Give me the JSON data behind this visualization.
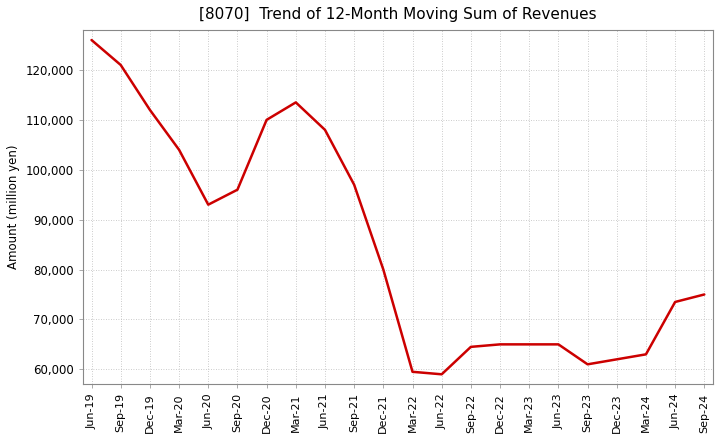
{
  "title": "[8070]  Trend of 12-Month Moving Sum of Revenues",
  "ylabel": "Amount (million yen)",
  "line_color": "#CC0000",
  "background_color": "#FFFFFF",
  "grid_color": "#BBBBBB",
  "ylim": [
    57000,
    128000
  ],
  "yticks": [
    60000,
    70000,
    80000,
    90000,
    100000,
    110000,
    120000
  ],
  "x_labels": [
    "Jun-19",
    "Sep-19",
    "Dec-19",
    "Mar-20",
    "Jun-20",
    "Sep-20",
    "Dec-20",
    "Mar-21",
    "Jun-21",
    "Sep-21",
    "Dec-21",
    "Mar-22",
    "Jun-22",
    "Sep-22",
    "Dec-22",
    "Mar-23",
    "Jun-23",
    "Sep-23",
    "Dec-23",
    "Mar-24",
    "Jun-24",
    "Sep-24"
  ],
  "values": [
    126000,
    121000,
    112000,
    104000,
    93000,
    96000,
    110000,
    113500,
    108000,
    97000,
    80000,
    59500,
    59000,
    64500,
    65000,
    65000,
    65000,
    61000,
    62000,
    63000,
    73500,
    75000
  ]
}
